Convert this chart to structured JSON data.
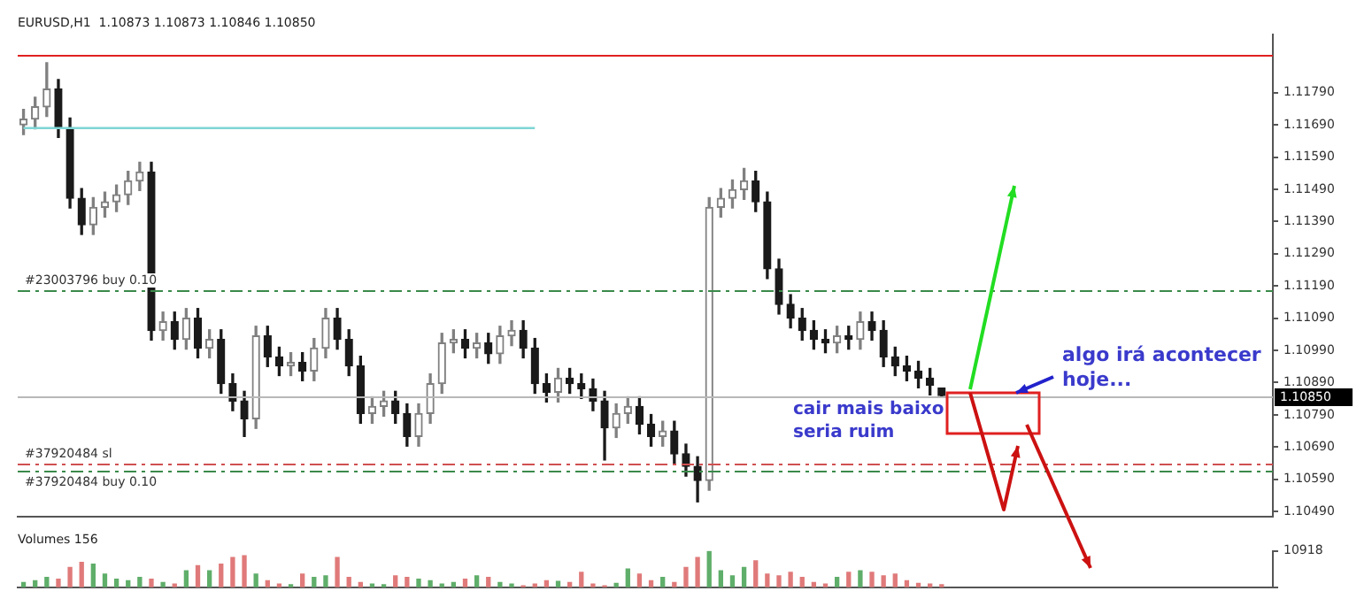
{
  "chart_data": [
    {
      "type": "candlestick",
      "title": "EURUSD,H1  1.10873 1.10873 1.10846 1.10850",
      "colors": [
        "#808080",
        "#808080",
        "#808080",
        "#1a1a1a",
        "#1a1a1a",
        "#1a1a1a",
        "#808080",
        "#808080",
        "#808080",
        "#808080",
        "#808080",
        "#1a1a1a",
        "#808080",
        "#1a1a1a",
        "#808080",
        "#1a1a1a",
        "#808080",
        "#1a1a1a",
        "#1a1a1a",
        "#1a1a1a",
        "#808080",
        "#1a1a1a",
        "#1a1a1a",
        "#808080",
        "#1a1a1a",
        "#808080",
        "#808080",
        "#1a1a1a",
        "#1a1a1a",
        "#1a1a1a",
        "#808080",
        "#808080",
        "#1a1a1a",
        "#1a1a1a",
        "#808080",
        "#808080",
        "#808080",
        "#808080",
        "#1a1a1a",
        "#808080",
        "#1a1a1a",
        "#808080",
        "#808080",
        "#1a1a1a",
        "#1a1a1a",
        "#1a1a1a",
        "#808080",
        "#1a1a1a",
        "#1a1a1a",
        "#1a1a1a",
        "#1a1a1a",
        "#808080",
        "#808080",
        "#1a1a1a",
        "#1a1a1a",
        "#808080",
        "#1a1a1a",
        "#1a1a1a",
        "#1a1a1a",
        "#808080",
        "#808080",
        "#808080",
        "#808080",
        "#1a1a1a",
        "#1a1a1a",
        "#1a1a1a",
        "#1a1a1a",
        "#1a1a1a",
        "#1a1a1a",
        "#1a1a1a",
        "#808080",
        "#1a1a1a",
        "#808080",
        "#1a1a1a",
        "#1a1a1a",
        "#1a1a1a",
        "#1a1a1a",
        "#1a1a1a",
        "#1a1a1a",
        "#1a1a1a",
        null,
        null,
        null,
        null,
        null,
        null,
        null,
        null,
        null,
        null,
        null,
        null,
        null,
        null,
        null,
        null,
        null,
        null,
        null,
        null,
        null,
        null,
        null,
        null,
        null,
        null,
        null,
        null
      ],
      "tick_labels": "y",
      "categories": [
        null,
        null,
        null,
        null,
        null,
        null,
        null,
        null,
        null,
        null,
        null,
        null,
        null,
        null,
        null,
        null,
        null,
        null,
        null,
        null,
        null,
        null,
        null,
        null,
        null,
        null,
        null,
        null,
        null,
        null,
        null,
        null,
        null,
        null,
        null,
        null,
        null,
        null,
        null,
        null,
        null,
        null,
        null,
        null,
        null,
        null,
        null,
        null,
        null,
        null,
        null,
        null,
        null,
        null,
        null,
        null,
        null,
        null,
        null,
        null,
        null,
        null,
        null,
        null,
        null,
        null,
        null,
        null,
        null,
        null,
        null,
        null,
        null,
        null,
        null,
        null,
        null,
        null,
        null,
        null,
        null,
        null,
        null,
        null,
        null,
        null,
        null,
        null,
        null,
        null,
        null,
        null,
        null,
        null,
        null,
        null,
        null,
        null,
        null,
        null,
        null,
        null,
        null,
        null,
        null,
        null,
        null,
        null
      ],
      "ohlc": [
        [
          1.1169,
          1.11738,
          1.1166,
          1.11708
        ],
        [
          1.11708,
          1.11776,
          1.11678,
          1.11746
        ],
        [
          1.11746,
          1.11883,
          1.11716,
          1.11801
        ],
        [
          1.11801,
          1.11831,
          1.11651,
          1.11681
        ],
        [
          1.11681,
          1.11711,
          1.11432,
          1.11462
        ],
        [
          1.11462,
          1.11492,
          1.1135,
          1.1138
        ],
        [
          1.1138,
          1.11464,
          1.1135,
          1.11434
        ],
        [
          1.11434,
          1.11481,
          1.11404,
          1.11451
        ],
        [
          1.11451,
          1.11503,
          1.11421,
          1.11473
        ],
        [
          1.11473,
          1.11546,
          1.11443,
          1.11516
        ],
        [
          1.11516,
          1.11574,
          1.11486,
          1.11544
        ],
        [
          1.11544,
          1.11574,
          1.11022,
          1.11052
        ],
        [
          1.11052,
          1.11109,
          1.11022,
          1.11079
        ],
        [
          1.11079,
          1.11109,
          1.10994,
          1.11024
        ],
        [
          1.11024,
          1.1112,
          1.10994,
          1.1109
        ],
        [
          1.1109,
          1.1112,
          1.10967,
          1.10997
        ],
        [
          1.10997,
          1.11054,
          1.10967,
          1.11024
        ],
        [
          1.11024,
          1.11054,
          1.10857,
          1.10887
        ],
        [
          1.10887,
          1.10917,
          1.10803,
          1.10833
        ],
        [
          1.10833,
          1.10863,
          1.10723,
          1.10778
        ],
        [
          1.10778,
          1.11065,
          1.10748,
          1.11035
        ],
        [
          1.11035,
          1.11065,
          1.1094,
          1.1097
        ],
        [
          1.1097,
          1.11,
          1.10912,
          1.10942
        ],
        [
          1.10942,
          1.10983,
          1.10912,
          1.10953
        ],
        [
          1.10953,
          1.10983,
          1.10896,
          1.10926
        ],
        [
          1.10926,
          1.11027,
          1.10896,
          1.10997
        ],
        [
          1.10997,
          1.1112,
          1.10967,
          1.1109
        ],
        [
          1.1109,
          1.1112,
          1.10994,
          1.11024
        ],
        [
          1.11024,
          1.11054,
          1.10912,
          1.10942
        ],
        [
          1.10942,
          1.10972,
          1.10764,
          1.10794
        ],
        [
          1.10794,
          1.10846,
          1.10764,
          1.10816
        ],
        [
          1.10816,
          1.10863,
          1.10786,
          1.10833
        ],
        [
          1.10833,
          1.10863,
          1.10764,
          1.10794
        ],
        [
          1.10794,
          1.10824,
          1.10693,
          1.10723
        ],
        [
          1.10723,
          1.10824,
          1.10693,
          1.10794
        ],
        [
          1.10794,
          1.10917,
          1.10764,
          1.10887
        ],
        [
          1.10887,
          1.11043,
          1.10857,
          1.11013
        ],
        [
          1.11013,
          1.11054,
          1.10983,
          1.11024
        ],
        [
          1.11024,
          1.11054,
          1.10967,
          1.10997
        ],
        [
          1.10997,
          1.11043,
          1.10967,
          1.11013
        ],
        [
          1.11013,
          1.11043,
          1.1095,
          1.1098
        ],
        [
          1.1098,
          1.11065,
          1.1095,
          1.11035
        ],
        [
          1.11035,
          1.11082,
          1.11005,
          1.11052
        ],
        [
          1.11052,
          1.11082,
          1.10967,
          1.10997
        ],
        [
          1.10997,
          1.11027,
          1.10857,
          1.10887
        ],
        [
          1.10887,
          1.10917,
          1.1083,
          1.1086
        ],
        [
          1.1086,
          1.10934,
          1.1083,
          1.10904
        ],
        [
          1.10904,
          1.10934,
          1.10857,
          1.10887
        ],
        [
          1.10887,
          1.10917,
          1.10841,
          1.10871
        ],
        [
          1.10871,
          1.10901,
          1.10803,
          1.10833
        ],
        [
          1.10833,
          1.10863,
          1.1065,
          1.1075
        ],
        [
          1.1075,
          1.10824,
          1.1072,
          1.10794
        ],
        [
          1.10794,
          1.10846,
          1.10764,
          1.10816
        ],
        [
          1.10816,
          1.10846,
          1.10731,
          1.10761
        ],
        [
          1.10761,
          1.10791,
          1.10693,
          1.10723
        ],
        [
          1.10723,
          1.1077,
          1.10693,
          1.1074
        ],
        [
          1.1074,
          1.1077,
          1.10639,
          1.10669
        ],
        [
          1.10669,
          1.10699,
          1.106,
          1.1063
        ],
        [
          1.1063,
          1.1066,
          1.1052,
          1.10586
        ],
        [
          1.10586,
          1.11464,
          1.10556,
          1.11434
        ],
        [
          1.11434,
          1.11492,
          1.11404,
          1.11462
        ],
        [
          1.11462,
          1.11519,
          1.11432,
          1.11489
        ],
        [
          1.11489,
          1.11555,
          1.11459,
          1.11516
        ],
        [
          1.11516,
          1.11546,
          1.11421,
          1.11451
        ],
        [
          1.11451,
          1.11481,
          1.11213,
          1.11243
        ],
        [
          1.11243,
          1.11273,
          1.11103,
          1.11133
        ],
        [
          1.11133,
          1.11163,
          1.1106,
          1.1109
        ],
        [
          1.1109,
          1.1112,
          1.11022,
          1.11052
        ],
        [
          1.11052,
          1.11082,
          1.10994,
          1.11024
        ],
        [
          1.11024,
          1.11054,
          1.10983,
          1.11013
        ],
        [
          1.11013,
          1.11065,
          1.10983,
          1.11035
        ],
        [
          1.11035,
          1.11065,
          1.10994,
          1.11024
        ],
        [
          1.11024,
          1.11109,
          1.10994,
          1.11079
        ],
        [
          1.11079,
          1.11109,
          1.11022,
          1.11052
        ],
        [
          1.11052,
          1.11082,
          1.1094,
          1.1097
        ],
        [
          1.1097,
          1.11,
          1.10912,
          1.10942
        ],
        [
          1.10942,
          1.10972,
          1.10896,
          1.10926
        ],
        [
          1.10926,
          1.10956,
          1.10874,
          1.10904
        ],
        [
          1.10904,
          1.10934,
          1.10852,
          1.10882
        ],
        [
          1.10873,
          1.10873,
          1.10846,
          1.1085
        ],
        null,
        null,
        null,
        null,
        null,
        null,
        null,
        null,
        null,
        null,
        null,
        null,
        null,
        null,
        null,
        null,
        null,
        null,
        null,
        null,
        null,
        null,
        null,
        null,
        null,
        null,
        null,
        null
      ],
      "series": [
        {
          "type": "line",
          "color": "#7fd6d6",
          "values": [
            1.1168,
            1.1168,
            1.1168,
            1.1168,
            1.1168,
            1.1168,
            1.1168,
            1.1168,
            1.1168,
            1.1168,
            1.1168,
            1.1168,
            1.1168,
            1.1168,
            1.1168,
            1.1168,
            1.1168,
            1.1168,
            1.1168,
            1.1168,
            1.1168,
            1.1168,
            1.1168,
            1.1168,
            1.1168,
            1.1168,
            1.1168,
            1.1168,
            1.1168,
            1.1168,
            1.1168,
            1.1168,
            1.1168,
            1.1168,
            1.1168,
            1.1168,
            1.1168,
            1.1168,
            1.1168,
            1.1168,
            1.1168,
            1.1168,
            1.1168,
            1.1168,
            1.1168,
            null,
            null,
            null,
            null,
            null,
            null,
            null,
            null,
            null,
            null,
            null,
            null,
            null,
            null,
            null,
            null,
            null,
            null,
            null,
            null,
            null,
            null,
            null,
            null,
            null,
            null,
            null,
            null,
            null,
            null,
            null,
            null,
            null,
            null,
            null,
            null,
            null,
            null,
            null,
            null,
            null,
            null,
            null,
            null,
            null,
            null,
            null,
            null,
            null,
            null,
            null,
            null,
            null,
            null,
            null,
            null,
            null,
            null,
            null,
            null,
            null,
            null,
            null
          ]
        }
      ],
      "ylim": [
        1.10474,
        1.11971
      ],
      "yticks": [
        {
          "value": 1.1049,
          "label": "1.10490"
        },
        {
          "value": 1.1059,
          "label": "1.10590"
        },
        {
          "value": 1.1069,
          "label": "1.10690"
        },
        {
          "value": 1.1079,
          "label": "1.10790"
        },
        {
          "value": 1.1089,
          "label": "1.10890"
        },
        {
          "value": 1.1099,
          "label": "1.10990"
        },
        {
          "value": 1.1109,
          "label": "1.11090"
        },
        {
          "value": 1.1119,
          "label": "1.11190"
        },
        {
          "value": 1.1129,
          "label": "1.11290"
        },
        {
          "value": 1.1139,
          "label": "1.11390"
        },
        {
          "value": 1.1149,
          "label": "1.11490"
        },
        {
          "value": 1.1159,
          "label": "1.11590"
        },
        {
          "value": 1.1169,
          "label": "1.11690"
        },
        {
          "value": 1.1179,
          "label": "1.11790"
        }
      ],
      "ref_lines": [
        {
          "axis": "y",
          "value": 1.11905,
          "color": "#e02020",
          "line_style": "solid"
        },
        {
          "axis": "y",
          "value": 1.11177,
          "label": "#23003796 buy 0.10",
          "color": "#3a8a4a",
          "line_style": "dashed"
        },
        {
          "axis": "y",
          "value": 1.1064,
          "label": "#37920484 sl",
          "color": "#d05050",
          "line_style": "dashed"
        },
        {
          "axis": "y",
          "value": 1.10619,
          "label": "#37920484 buy 0.10",
          "color": "#3a8a4a",
          "line_style": "dashed"
        },
        {
          "axis": "y",
          "value": 1.1085,
          "label": "1.10850",
          "color": "#b8b8b8",
          "line_style": "solid"
        }
      ],
      "annotations": [
        "algo irá acontecer hoje...",
        "cair mais baixo seria ruim"
      ]
    },
    {
      "type": "bar",
      "title": "Volumes 156",
      "tick_labels": "y",
      "ylim": [
        0,
        10918
      ],
      "yticks": [
        0,
        10918
      ],
      "categories": [
        null,
        null,
        null,
        null,
        null,
        null,
        null,
        null,
        null,
        null,
        null,
        null,
        null,
        null,
        null,
        null,
        null,
        null,
        null,
        null,
        null,
        null,
        null,
        null,
        null,
        null,
        null,
        null,
        null,
        null,
        null,
        null,
        null,
        null,
        null,
        null,
        null,
        null,
        null,
        null,
        null,
        null,
        null,
        null,
        null,
        null,
        null,
        null,
        null,
        null,
        null,
        null,
        null,
        null,
        null,
        null,
        null,
        null,
        null,
        null,
        null,
        null,
        null,
        null,
        null,
        null,
        null,
        null,
        null,
        null,
        null,
        null,
        null,
        null,
        null,
        null,
        null,
        null,
        null,
        null,
        null,
        null,
        null,
        null,
        null,
        null,
        null,
        null,
        null,
        null,
        null,
        null,
        null,
        null,
        null,
        null,
        null,
        null,
        null,
        null,
        null,
        null,
        null,
        null,
        null,
        null,
        null,
        null
      ],
      "values": [
        1500,
        2000,
        3000,
        2500,
        6000,
        7500,
        7000,
        4000,
        2500,
        2000,
        3000,
        2500,
        1500,
        1000,
        5000,
        6500,
        5000,
        7000,
        9000,
        9500,
        4000,
        2000,
        1000,
        800,
        4000,
        3000,
        3500,
        9000,
        3000,
        1500,
        1000,
        800,
        3500,
        3000,
        2500,
        2000,
        1000,
        1500,
        2500,
        3500,
        3000,
        1500,
        1000,
        500,
        1000,
        2000,
        1800,
        1500,
        4500,
        1000,
        500,
        1200,
        5500,
        4000,
        2000,
        3000,
        1500,
        6000,
        9000,
        10918,
        5000,
        3500,
        6000,
        8000,
        4000,
        3500,
        4500,
        3000,
        1500,
        1000,
        3000,
        4500,
        5000,
        4500,
        3500,
        4000,
        2000,
        1200,
        1000,
        800,
        null,
        null,
        null,
        null,
        null,
        null,
        null,
        null,
        null,
        null,
        null,
        null,
        null,
        null,
        null,
        null,
        null,
        null,
        null,
        null,
        null,
        null,
        null,
        null,
        null,
        null,
        null,
        null
      ],
      "colors": [
        "#5fae6a",
        "#5fae6a",
        "#5fae6a",
        "#e07a7a",
        "#e07a7a",
        "#e07a7a",
        "#5fae6a",
        "#5fae6a",
        "#5fae6a",
        "#5fae6a",
        "#5fae6a",
        "#e07a7a",
        "#5fae6a",
        "#e07a7a",
        "#5fae6a",
        "#e07a7a",
        "#5fae6a",
        "#e07a7a",
        "#e07a7a",
        "#e07a7a",
        "#5fae6a",
        "#e07a7a",
        "#e07a7a",
        "#5fae6a",
        "#e07a7a",
        "#5fae6a",
        "#5fae6a",
        "#e07a7a",
        "#e07a7a",
        "#e07a7a",
        "#5fae6a",
        "#5fae6a",
        "#e07a7a",
        "#e07a7a",
        "#5fae6a",
        "#5fae6a",
        "#5fae6a",
        "#5fae6a",
        "#e07a7a",
        "#5fae6a",
        "#e07a7a",
        "#5fae6a",
        "#5fae6a",
        "#e07a7a",
        "#e07a7a",
        "#e07a7a",
        "#5fae6a",
        "#e07a7a",
        "#e07a7a",
        "#e07a7a",
        "#e07a7a",
        "#5fae6a",
        "#5fae6a",
        "#e07a7a",
        "#e07a7a",
        "#5fae6a",
        "#e07a7a",
        "#e07a7a",
        "#e07a7a",
        "#5fae6a",
        "#5fae6a",
        "#5fae6a",
        "#5fae6a",
        "#e07a7a",
        "#e07a7a",
        "#e07a7a",
        "#e07a7a",
        "#e07a7a",
        "#e07a7a",
        "#e07a7a",
        "#5fae6a",
        "#e07a7a",
        "#5fae6a",
        "#e07a7a",
        "#e07a7a",
        "#e07a7a",
        "#e07a7a",
        "#e07a7a",
        "#e07a7a",
        "#e07a7a",
        null,
        null,
        null,
        null,
        null,
        null,
        null,
        null,
        null,
        null,
        null,
        null,
        null,
        null,
        null,
        null,
        null,
        null,
        null,
        null,
        null,
        null,
        null,
        null,
        null,
        null,
        null,
        null
      ]
    }
  ]
}
